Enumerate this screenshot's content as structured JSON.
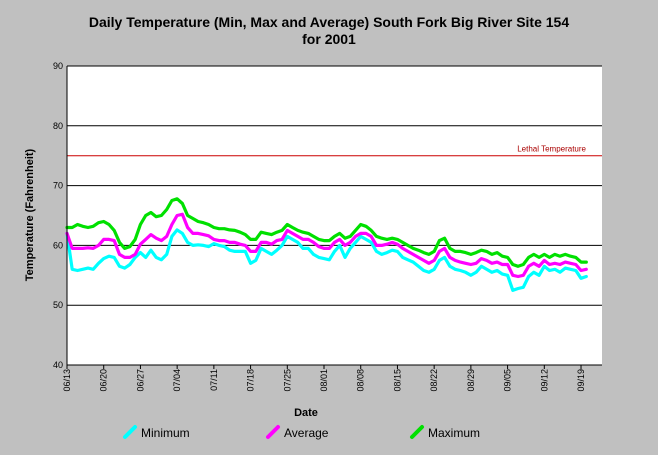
{
  "chart_data": {
    "type": "line",
    "title": "Daily Temperature (Min, Max and Average) South Fork Big River Site 154",
    "subtitle": "for 2001",
    "xlabel": "Date",
    "ylabel": "Temperature (Fahrenheit)",
    "ylim": [
      40,
      90
    ],
    "yticks": [
      40,
      50,
      60,
      70,
      80,
      90
    ],
    "grid": true,
    "legend_position": "bottom",
    "x_start": "2001-06-13",
    "x_end": "2001-09-23",
    "x_tick_labels": [
      "06/13",
      "06/20",
      "06/27",
      "07/04",
      "07/11",
      "07/18",
      "07/25",
      "08/01",
      "08/08",
      "08/15",
      "08/22",
      "08/29",
      "09/05",
      "09/12",
      "09/19"
    ],
    "reference_line": {
      "label": "Lethal Temperature",
      "value": 75,
      "color": "#cc0000"
    },
    "x": [
      "2001-06-13",
      "2001-06-14",
      "2001-06-15",
      "2001-06-16",
      "2001-06-17",
      "2001-06-18",
      "2001-06-19",
      "2001-06-20",
      "2001-06-21",
      "2001-06-22",
      "2001-06-23",
      "2001-06-24",
      "2001-06-25",
      "2001-06-26",
      "2001-06-27",
      "2001-06-28",
      "2001-06-29",
      "2001-06-30",
      "2001-07-01",
      "2001-07-02",
      "2001-07-03",
      "2001-07-04",
      "2001-07-05",
      "2001-07-06",
      "2001-07-07",
      "2001-07-08",
      "2001-07-09",
      "2001-07-10",
      "2001-07-11",
      "2001-07-12",
      "2001-07-13",
      "2001-07-14",
      "2001-07-15",
      "2001-07-16",
      "2001-07-17",
      "2001-07-18",
      "2001-07-19",
      "2001-07-20",
      "2001-07-21",
      "2001-07-22",
      "2001-07-23",
      "2001-07-24",
      "2001-07-25",
      "2001-07-26",
      "2001-07-27",
      "2001-07-28",
      "2001-07-29",
      "2001-07-30",
      "2001-07-31",
      "2001-08-01",
      "2001-08-02",
      "2001-08-03",
      "2001-08-04",
      "2001-08-05",
      "2001-08-06",
      "2001-08-07",
      "2001-08-08",
      "2001-08-09",
      "2001-08-10",
      "2001-08-11",
      "2001-08-12",
      "2001-08-13",
      "2001-08-14",
      "2001-08-15",
      "2001-08-16",
      "2001-08-17",
      "2001-08-18",
      "2001-08-19",
      "2001-08-20",
      "2001-08-21",
      "2001-08-22",
      "2001-08-23",
      "2001-08-24",
      "2001-08-25",
      "2001-08-26",
      "2001-08-27",
      "2001-08-28",
      "2001-08-29",
      "2001-08-30",
      "2001-08-31",
      "2001-09-01",
      "2001-09-02",
      "2001-09-03",
      "2001-09-04",
      "2001-09-05",
      "2001-09-06",
      "2001-09-07",
      "2001-09-08",
      "2001-09-09",
      "2001-09-10",
      "2001-09-11",
      "2001-09-12",
      "2001-09-13",
      "2001-09-14",
      "2001-09-15",
      "2001-09-16",
      "2001-09-17",
      "2001-09-18",
      "2001-09-19",
      "2001-09-20"
    ],
    "series": [
      {
        "name": "Minimum",
        "color": "#00ffff",
        "values": [
          62.0,
          56.0,
          55.8,
          56.0,
          56.2,
          56.0,
          57.0,
          57.8,
          58.2,
          58.0,
          56.5,
          56.2,
          56.8,
          58.0,
          58.8,
          58.0,
          59.2,
          58.0,
          57.6,
          58.5,
          61.5,
          62.6,
          62.0,
          60.5,
          60.0,
          60.1,
          60.0,
          59.8,
          60.3,
          60.0,
          59.8,
          59.2,
          59.0,
          59.0,
          59.0,
          57.0,
          57.5,
          59.5,
          59.0,
          58.5,
          59.2,
          60.0,
          61.5,
          61.0,
          60.5,
          59.5,
          59.5,
          58.5,
          58.0,
          57.8,
          57.6,
          59.0,
          60.0,
          58.0,
          59.5,
          60.5,
          61.5,
          61.0,
          60.5,
          59.0,
          58.5,
          58.8,
          59.2,
          59.0,
          58.0,
          57.6,
          57.2,
          56.5,
          55.8,
          55.5,
          56.0,
          57.5,
          58.0,
          56.5,
          56.0,
          55.8,
          55.5,
          55.0,
          55.5,
          56.5,
          56.0,
          55.5,
          55.8,
          55.2,
          55.0,
          52.5,
          52.8,
          53.0,
          54.8,
          55.5,
          55.0,
          56.5,
          55.8,
          56.0,
          55.5,
          56.2,
          56.0,
          55.8,
          54.5,
          54.8
        ]
      },
      {
        "name": "Average",
        "color": "#ff00ff",
        "values": [
          62.0,
          59.5,
          59.5,
          59.5,
          59.6,
          59.5,
          60.0,
          61.0,
          61.0,
          60.8,
          58.5,
          58.0,
          58.0,
          58.5,
          60.2,
          61.0,
          61.8,
          61.2,
          60.8,
          61.5,
          63.5,
          65.0,
          65.2,
          63.0,
          62.0,
          62.0,
          61.8,
          61.6,
          61.0,
          60.8,
          60.8,
          60.5,
          60.5,
          60.2,
          60.0,
          59.0,
          59.0,
          60.5,
          60.5,
          60.2,
          60.8,
          61.0,
          62.5,
          62.0,
          61.5,
          61.0,
          61.0,
          60.5,
          59.8,
          59.5,
          59.5,
          60.5,
          61.0,
          60.0,
          60.5,
          61.5,
          62.0,
          62.0,
          61.5,
          60.0,
          60.0,
          60.2,
          60.5,
          60.2,
          59.5,
          59.0,
          58.5,
          58.0,
          57.5,
          57.0,
          57.5,
          59.0,
          59.5,
          58.0,
          57.5,
          57.2,
          57.0,
          56.8,
          57.0,
          57.8,
          57.5,
          57.0,
          57.2,
          56.8,
          56.8,
          55.0,
          54.8,
          55.0,
          56.5,
          57.0,
          56.5,
          57.5,
          56.8,
          57.0,
          56.8,
          57.2,
          57.0,
          56.8,
          55.8,
          56.0
        ]
      },
      {
        "name": "Maximum",
        "color": "#00e000",
        "values": [
          63.0,
          63.0,
          63.5,
          63.2,
          63.0,
          63.2,
          63.8,
          64.0,
          63.5,
          62.5,
          60.5,
          59.5,
          59.8,
          61.0,
          63.5,
          65.0,
          65.5,
          64.8,
          65.0,
          66.0,
          67.5,
          67.8,
          67.0,
          65.0,
          64.5,
          64.0,
          63.8,
          63.5,
          63.0,
          62.8,
          62.8,
          62.6,
          62.5,
          62.2,
          61.8,
          61.0,
          61.0,
          62.2,
          62.0,
          61.8,
          62.2,
          62.5,
          63.5,
          63.0,
          62.5,
          62.2,
          62.0,
          61.5,
          61.0,
          60.8,
          60.8,
          61.5,
          62.0,
          61.2,
          61.5,
          62.5,
          63.5,
          63.2,
          62.5,
          61.5,
          61.2,
          61.0,
          61.2,
          61.0,
          60.5,
          60.0,
          59.5,
          59.2,
          58.8,
          58.5,
          59.0,
          60.8,
          61.2,
          59.5,
          59.0,
          59.0,
          58.8,
          58.5,
          58.8,
          59.2,
          59.0,
          58.5,
          58.8,
          58.2,
          58.0,
          56.8,
          56.5,
          56.8,
          58.0,
          58.5,
          58.0,
          58.5,
          58.0,
          58.5,
          58.2,
          58.5,
          58.2,
          58.0,
          57.2,
          57.2
        ]
      }
    ]
  }
}
